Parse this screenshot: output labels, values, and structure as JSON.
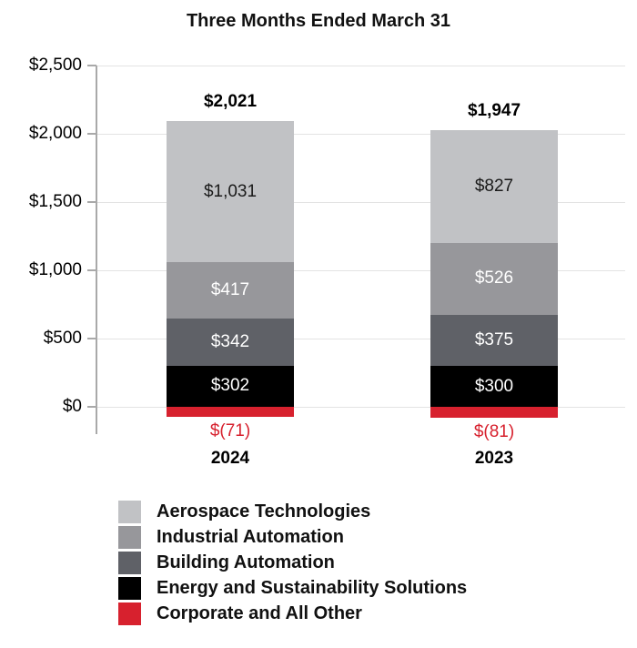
{
  "chart_data": {
    "type": "bar",
    "stacked": true,
    "title": "Three Months Ended March 31",
    "categories": [
      "2024",
      "2023"
    ],
    "series": [
      {
        "name": "Aerospace Technologies",
        "values": [
          1031,
          827
        ],
        "labels": [
          "$1,031",
          "$827"
        ],
        "color": "#c1c2c5",
        "label_color": "#1a1a1a"
      },
      {
        "name": "Industrial Automation",
        "values": [
          417,
          526
        ],
        "labels": [
          "$417",
          "$526"
        ],
        "color": "#97979b",
        "label_color": "#ffffff"
      },
      {
        "name": "Building Automation",
        "values": [
          342,
          375
        ],
        "labels": [
          "$342",
          "$375"
        ],
        "color": "#5f6167",
        "label_color": "#ffffff"
      },
      {
        "name": "Energy and Sustainability Solutions",
        "values": [
          302,
          300
        ],
        "labels": [
          "$302",
          "$300"
        ],
        "color": "#000000",
        "label_color": "#ffffff"
      },
      {
        "name": "Corporate and All Other",
        "values": [
          -71,
          -81
        ],
        "labels": [
          "$(71)",
          "$(81)"
        ],
        "color": "#d7212e",
        "label_color": "#d7212e"
      }
    ],
    "totals": {
      "values": [
        2021,
        1947
      ],
      "labels": [
        "$2,021",
        "$1,947"
      ]
    },
    "y_axis": {
      "min": 0,
      "max": 2500,
      "tick_step": 500,
      "ticks": [
        {
          "value": 2500,
          "label": "$2,500"
        },
        {
          "value": 2000,
          "label": "$2,000"
        },
        {
          "value": 1500,
          "label": "$1,500"
        },
        {
          "value": 1000,
          "label": "$1,000"
        },
        {
          "value": 500,
          "label": "$500"
        },
        {
          "value": 0,
          "label": "$0"
        }
      ]
    },
    "grid": true,
    "legend_position": "bottom",
    "style_colors": {
      "grid_line": "#e3e3e3",
      "axis_line": "#a9a9a9",
      "title_text": "#111111",
      "negative_text": "#d7212e"
    }
  }
}
